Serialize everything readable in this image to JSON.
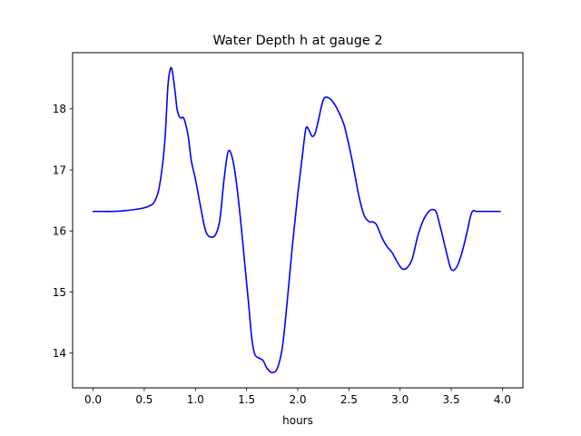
{
  "chart_data": {
    "type": "line",
    "title": "Water Depth h at gauge 2",
    "xlabel": "hours",
    "ylabel": "",
    "xlim": [
      -0.2,
      4.2
    ],
    "ylim": [
      13.43,
      18.92
    ],
    "xticks": [
      0.0,
      0.5,
      1.0,
      1.5,
      2.0,
      2.5,
      3.0,
      3.5,
      4.0
    ],
    "xtick_labels": [
      "0.0",
      "0.5",
      "1.0",
      "1.5",
      "2.0",
      "2.5",
      "3.0",
      "3.5",
      "4.0"
    ],
    "yticks": [
      14,
      15,
      16,
      17,
      18
    ],
    "ytick_labels": [
      "14",
      "15",
      "16",
      "17",
      "18"
    ],
    "grid": false,
    "legend": "none",
    "series": [
      {
        "color": "#0000ff",
        "x": [
          0.0,
          0.1,
          0.2,
          0.3,
          0.4,
          0.5,
          0.55,
          0.6,
          0.65,
          0.7,
          0.73,
          0.75,
          0.77,
          0.8,
          0.82,
          0.84,
          0.86,
          0.88,
          0.9,
          0.93,
          0.96,
          1.0,
          1.05,
          1.1,
          1.15,
          1.2,
          1.24,
          1.28,
          1.32,
          1.36,
          1.4,
          1.44,
          1.48,
          1.52,
          1.55,
          1.58,
          1.62,
          1.66,
          1.7,
          1.75,
          1.8,
          1.85,
          1.9,
          1.95,
          2.0,
          2.05,
          2.08,
          2.11,
          2.14,
          2.17,
          2.2,
          2.25,
          2.3,
          2.35,
          2.4,
          2.45,
          2.48,
          2.52,
          2.56,
          2.6,
          2.65,
          2.7,
          2.73,
          2.77,
          2.82,
          2.87,
          2.92,
          2.97,
          3.02,
          3.07,
          3.12,
          3.17,
          3.22,
          3.27,
          3.31,
          3.35,
          3.38,
          3.42,
          3.46,
          3.5,
          3.55,
          3.6,
          3.65,
          3.7,
          3.75,
          3.8,
          3.85,
          3.9,
          3.95,
          3.98
        ],
        "y": [
          16.32,
          16.32,
          16.32,
          16.33,
          16.35,
          16.38,
          16.41,
          16.48,
          16.75,
          17.45,
          18.35,
          18.62,
          18.65,
          18.3,
          18.0,
          17.88,
          17.85,
          17.86,
          17.78,
          17.55,
          17.15,
          16.85,
          16.4,
          16.0,
          15.9,
          15.95,
          16.2,
          16.85,
          17.3,
          17.2,
          16.8,
          16.2,
          15.5,
          14.8,
          14.25,
          13.98,
          13.92,
          13.88,
          13.75,
          13.68,
          13.75,
          14.1,
          14.9,
          15.8,
          16.6,
          17.3,
          17.68,
          17.65,
          17.55,
          17.6,
          17.8,
          18.15,
          18.18,
          18.1,
          17.95,
          17.75,
          17.55,
          17.25,
          16.9,
          16.55,
          16.25,
          16.15,
          16.15,
          16.1,
          15.9,
          15.75,
          15.65,
          15.5,
          15.38,
          15.4,
          15.55,
          15.9,
          16.15,
          16.3,
          16.35,
          16.32,
          16.15,
          15.88,
          15.6,
          15.37,
          15.4,
          15.62,
          15.95,
          16.3,
          16.32,
          16.32,
          16.32,
          16.32,
          16.32,
          16.32
        ]
      }
    ]
  }
}
